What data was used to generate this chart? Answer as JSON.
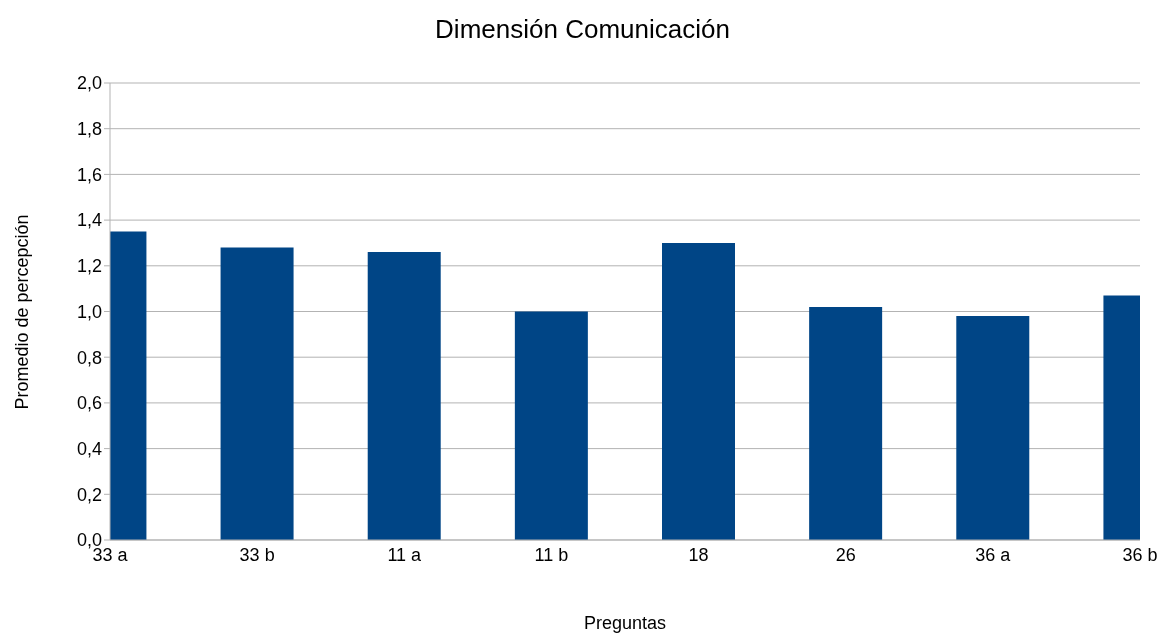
{
  "chart_data": {
    "type": "bar",
    "title": "Dimensión Comunicación",
    "xlabel": "Preguntas",
    "ylabel": "Promedio de percepción",
    "categories": [
      "33 a",
      "33 b",
      "11 a",
      "11 b",
      "18",
      "26",
      "36 a",
      "36 b"
    ],
    "values": [
      1.35,
      1.28,
      1.26,
      1.0,
      1.3,
      1.02,
      0.98,
      1.07
    ],
    "color": "#004586",
    "ylim": [
      0,
      2
    ],
    "yticks": [
      {
        "value": 0,
        "label": "0,0"
      },
      {
        "value": 0.2,
        "label": "0,2"
      },
      {
        "value": 0.4,
        "label": "0,4"
      },
      {
        "value": 0.6,
        "label": "0,6"
      },
      {
        "value": 0.8,
        "label": "0,8"
      },
      {
        "value": 1,
        "label": "1,0"
      },
      {
        "value": 1.2,
        "label": "1,2"
      },
      {
        "value": 1.4,
        "label": "1,4"
      },
      {
        "value": 1.6,
        "label": "1,6"
      },
      {
        "value": 1.8,
        "label": "1,8"
      },
      {
        "value": 2,
        "label": "2,0"
      }
    ],
    "grid": "y"
  }
}
